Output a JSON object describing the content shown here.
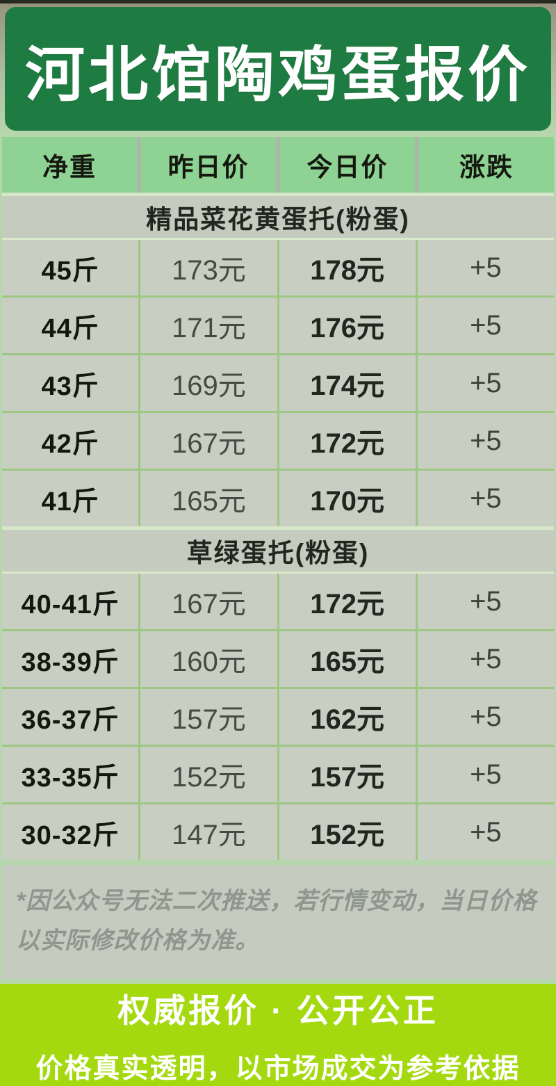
{
  "title": "河北馆陶鸡蛋报价",
  "table": {
    "columns": [
      "净重",
      "昨日价",
      "今日价",
      "涨跌"
    ],
    "column_keys": [
      "weight",
      "yesterday-price",
      "today-price",
      "change"
    ],
    "sections": [
      {
        "label": "精品菜花黄蛋托(粉蛋)",
        "rows": [
          [
            "45斤",
            "173元",
            "178元",
            "+5"
          ],
          [
            "44斤",
            "171元",
            "176元",
            "+5"
          ],
          [
            "43斤",
            "169元",
            "174元",
            "+5"
          ],
          [
            "42斤",
            "167元",
            "172元",
            "+5"
          ],
          [
            "41斤",
            "165元",
            "170元",
            "+5"
          ]
        ]
      },
      {
        "label": "草绿蛋托(粉蛋)",
        "rows": [
          [
            "40-41斤",
            "167元",
            "172元",
            "+5"
          ],
          [
            "38-39斤",
            "160元",
            "165元",
            "+5"
          ],
          [
            "36-37斤",
            "157元",
            "162元",
            "+5"
          ],
          [
            "33-35斤",
            "152元",
            "157元",
            "+5"
          ],
          [
            "30-32斤",
            "147元",
            "152元",
            "+5"
          ]
        ]
      }
    ]
  },
  "footnote": "*因公众号无法二次推送，若行情变动，当日价格以实际修改价格为准。",
  "footer": {
    "line1": "权威报价 · 公开公正",
    "line2": "价格真实透明，以市场成交为参考依据"
  },
  "colors": {
    "title_bg": "#1e7b41",
    "header_cell_bg": "#8ed294",
    "cell_bg": "#c8cec1",
    "section_bg": "#c5cbbe",
    "divider_green": "#9dc783",
    "page_bg": "#b6d7ad",
    "footer_bg": "#a4d90f",
    "footnote_text": "#8f968d"
  }
}
